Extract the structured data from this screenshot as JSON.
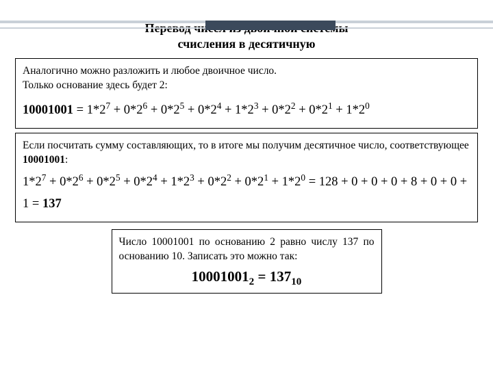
{
  "colors": {
    "deco_dark": "#3b495b",
    "deco_light": "#c9d0d8",
    "text": "#000000",
    "border": "#000000",
    "background": "#ffffff"
  },
  "title_line1": "Перевод чисел из двоичной системы",
  "title_line2": "счисления в десятичную",
  "box1": {
    "line1": "Аналогично можно разложить и любое двоичное число.",
    "line2": "Только основание здесь будет 2:",
    "binary": "10001001",
    "eq": " = ",
    "terms": [
      {
        "c": "1",
        "b": "2",
        "e": "7"
      },
      {
        "c": "0",
        "b": "2",
        "e": "6"
      },
      {
        "c": "0",
        "b": "2",
        "e": "5"
      },
      {
        "c": "0",
        "b": "2",
        "e": "4"
      },
      {
        "c": "1",
        "b": "2",
        "e": "3"
      },
      {
        "c": "0",
        "b": "2",
        "e": "2"
      },
      {
        "c": "0",
        "b": "2",
        "e": "1"
      },
      {
        "c": "1",
        "b": "2",
        "e": "0"
      }
    ]
  },
  "box2": {
    "intro1": "Если посчитать сумму составляющих, то в итоге мы получим десятичное число, соответствующее ",
    "introbold": "10001001",
    "intro2": ":",
    "terms": [
      {
        "c": "1",
        "b": "2",
        "e": "7"
      },
      {
        "c": "0",
        "b": "2",
        "e": "6"
      },
      {
        "c": "0",
        "b": "2",
        "e": "5"
      },
      {
        "c": "0",
        "b": "2",
        "e": "4"
      },
      {
        "c": "1",
        "b": "2",
        "e": "3"
      },
      {
        "c": "0",
        "b": "2",
        "e": "2"
      },
      {
        "c": "0",
        "b": "2",
        "e": "1"
      },
      {
        "c": "1",
        "b": "2",
        "e": "0"
      }
    ],
    "sumtext": " = 128 + 0 + 0 + 0 + 8 + 0 + 0 + 1 = ",
    "result": "137"
  },
  "box3": {
    "text": "Число 10001001 по основанию 2 равно числу 137 по основанию 10. Записать это можно так:",
    "lhs": "10001001",
    "lhs_sub": "2",
    "eq": " = ",
    "rhs": "137",
    "rhs_sub": "10"
  }
}
